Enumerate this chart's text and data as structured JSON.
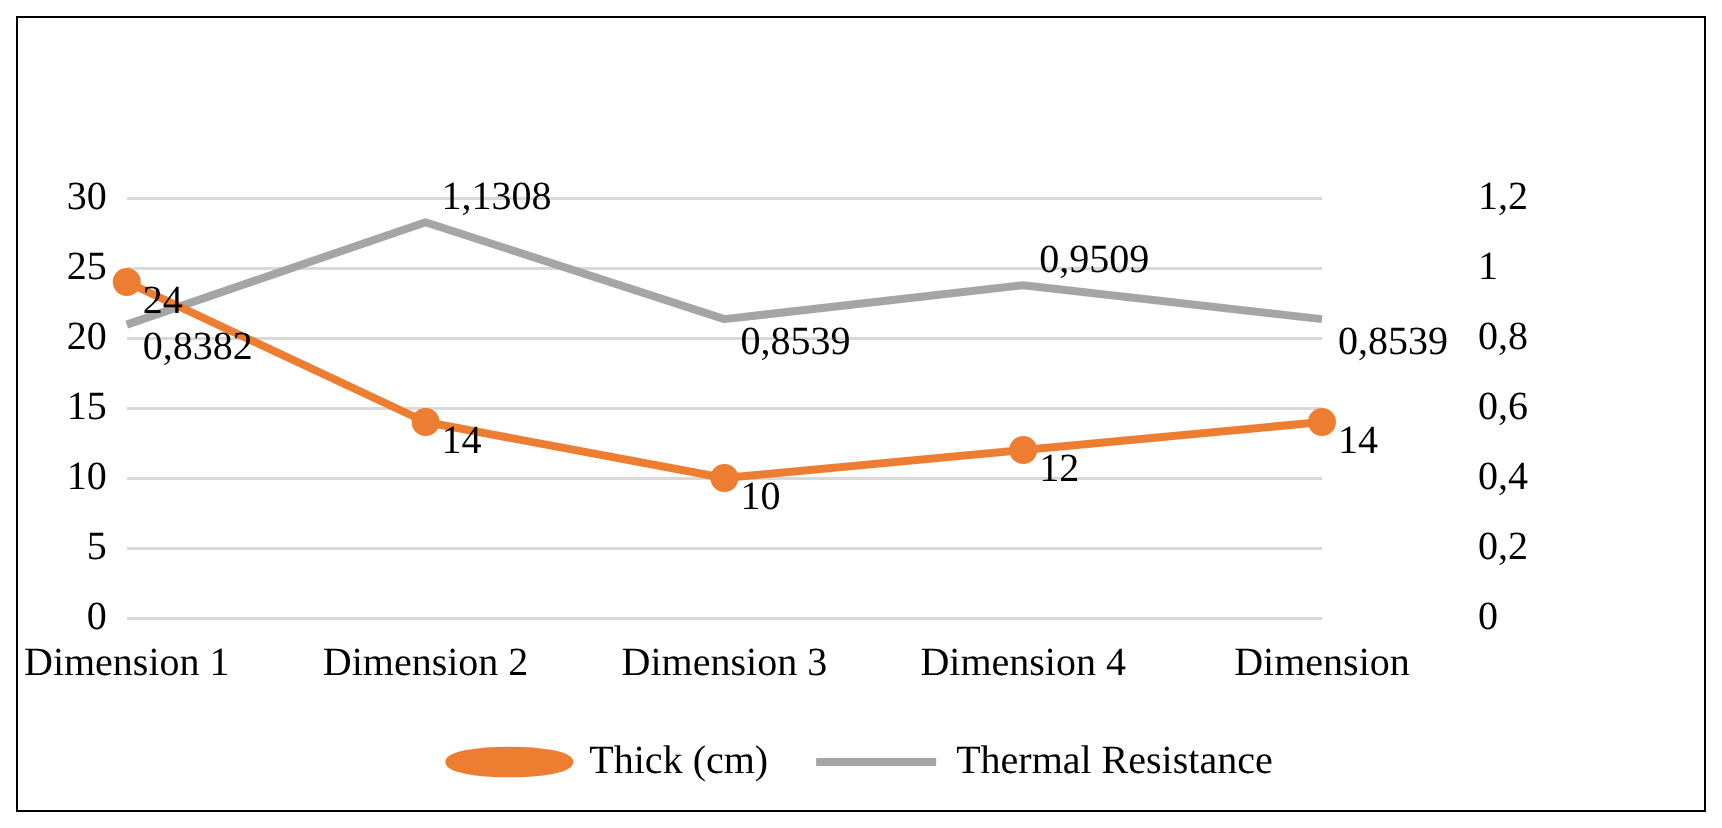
{
  "chart_data": {
    "type": "line",
    "categories": [
      "Dimension 1",
      "Dimension 2",
      "Dimension 3",
      "Dimension 4",
      "Dimension"
    ],
    "series": [
      {
        "name": "Thick (cm)",
        "color": "#ed7d31",
        "values": [
          24,
          14,
          10,
          12,
          14
        ],
        "marker": "circle",
        "value_labels": [
          "24",
          "14",
          "10",
          "12",
          "14"
        ]
      },
      {
        "name": "Thermal Resistance",
        "color": "#a5a5a5",
        "axis": "y2",
        "values": [
          0.8382,
          1.1308,
          0.8539,
          0.9509,
          0.8539
        ],
        "marker": "none",
        "value_labels": [
          "0,8382",
          "1,1308",
          "0,8539",
          "0,9509",
          "0,8539"
        ]
      }
    ],
    "ylim": [
      0,
      30
    ],
    "yticks": [
      0,
      5,
      10,
      15,
      20,
      25,
      30
    ],
    "y2lim": [
      0,
      1.2
    ],
    "y2ticks": [
      0,
      {
        "value": 0.2,
        "label": "0,2"
      },
      {
        "value": 0.4,
        "label": "0,4"
      },
      {
        "value": 0.6,
        "label": "0,6"
      },
      {
        "value": 0.8,
        "label": "0,8"
      },
      1,
      {
        "value": 1.2,
        "label": "1,2"
      }
    ],
    "grid": "y",
    "legend": "bottom",
    "line_style": "solid"
  }
}
